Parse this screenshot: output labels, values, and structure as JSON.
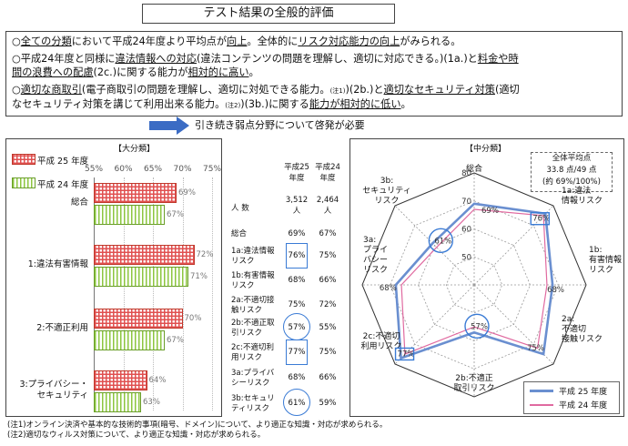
{
  "title": "テスト結果の全般的評価",
  "summary": {
    "line1": [
      "○",
      "全ての分類",
      "において平成24年度より平均点が",
      "向上",
      "。全体的に",
      "リスク対応能力の向上",
      "がみられる。"
    ],
    "line2a": [
      "○平成24年度と同様に",
      "違法情報への対応",
      "(違法コンテンツの問題を理解し、適切に対応できる。)(1a.)と",
      "料金や時"
    ],
    "line2b": [
      "間の浪費への配慮",
      "(2c.)に関する能力が",
      "相対的に高い",
      "。"
    ],
    "line3a": [
      "○",
      "適切な商取引",
      "(電子商取引の問題を理解し、適切に対処できる能力。",
      "(注1)",
      ")(2b.)と",
      "適切なセキュリティ対策",
      "(適切"
    ],
    "line3b": [
      "なセキュリティ対策を講じて利用出来る能力。",
      "(注2)",
      ")(3b.)に関する",
      "能力が相対的に低い",
      "。"
    ]
  },
  "conclusion": "引き続き弱点分野について啓発が必要",
  "left_panel": {
    "title": "【大分類】",
    "legend_25": "平成 25 年度",
    "legend_24": "平成 24 年度"
  },
  "right_panel": {
    "title": "【中分類】",
    "note_lines": [
      "全体平均点",
      "33.8 点/49 点",
      "(約 69%/100%)"
    ],
    "legend_25": "平成 25 年度",
    "legend_24": "平成 24 年度"
  },
  "table": {
    "header_25": [
      "平成25",
      "年度"
    ],
    "header_24": [
      "平成24",
      "年度"
    ],
    "count_label": "人 数",
    "count_25": [
      "3,512",
      "人"
    ],
    "count_24": [
      "2,464",
      "人"
    ],
    "rows": [
      {
        "label": [
          "総合"
        ],
        "v25": "69%",
        "v24": "67%",
        "mark": "none"
      },
      {
        "label": [
          "1a:違法情報",
          "リスク"
        ],
        "v25": "76%",
        "v24": "75%",
        "mark": "square"
      },
      {
        "label": [
          "1b:有害情報",
          "リスク"
        ],
        "v25": "68%",
        "v24": "66%",
        "mark": "none"
      },
      {
        "label": [
          "2a:不適切接",
          "触リスク"
        ],
        "v25": "75%",
        "v24": "72%",
        "mark": "none"
      },
      {
        "label": [
          "2b:不適正取",
          "引リスク"
        ],
        "v25": "57%",
        "v24": "55%",
        "mark": "circle"
      },
      {
        "label": [
          "2c:不適切利",
          "用リスク"
        ],
        "v25": "77%",
        "v24": "75%",
        "mark": "square"
      },
      {
        "label": [
          "3a:プライバ",
          "シーリスク"
        ],
        "v25": "68%",
        "v24": "66%",
        "mark": "none"
      },
      {
        "label": [
          "3b:セキュリ",
          "ティリスク"
        ],
        "v25": "61%",
        "v24": "59%",
        "mark": "circle"
      }
    ]
  },
  "notes": [
    "(注1)オンライン決済や基本的な技術的事項(暗号、ドメイン)について、より適正な知識・対応が求められる。",
    "(注2)適切なウィルス対策について、より適正な知識・対応が求められる。"
  ],
  "chart_data": [
    {
      "type": "bar",
      "orientation": "horizontal",
      "title": "【大分類】",
      "categories": [
        [
          "総合"
        ],
        [
          "1:違法有害情報"
        ],
        [
          "2:不適正利用"
        ],
        [
          "3:プライバシー・",
          "セキュリティ"
        ]
      ],
      "series": [
        {
          "name": "平成 25 年度",
          "values": [
            69,
            72,
            70,
            64
          ],
          "value_labels": [
            "69%",
            "72%",
            "70%",
            "64%"
          ]
        },
        {
          "name": "平成 24 年度",
          "values": [
            67,
            71,
            67,
            63
          ],
          "value_labels": [
            "67%",
            "71%",
            "67%",
            "63%"
          ]
        }
      ],
      "xlim": [
        55,
        75
      ],
      "xticks": [
        "55%",
        "60%",
        "65%",
        "70%",
        "75%"
      ],
      "legend": "top-left"
    },
    {
      "type": "radar",
      "title": "【中分類】",
      "axes": [
        [
          "総合"
        ],
        [
          "1a:違法",
          "情報リスク"
        ],
        [
          "1b:",
          "有害情報",
          "リスク"
        ],
        [
          "2a:",
          "不適切",
          "接触リスク"
        ],
        [
          "2b:不適正",
          "取引リスク"
        ],
        [
          "2c:不適切",
          "利用リスク"
        ],
        [
          "3a:",
          "プライ",
          "バシー",
          "リスク"
        ],
        [
          "3b:",
          "セキュリティ",
          "リスク"
        ]
      ],
      "rlim": [
        40,
        80
      ],
      "rticks": [
        "40",
        "50",
        "60",
        "70",
        "80"
      ],
      "series": [
        {
          "name": "平成 25 年度",
          "values": [
            69,
            76,
            68,
            75,
            57,
            77,
            68,
            61
          ],
          "value_labels": [
            "69%",
            "76%",
            "68%",
            "75%",
            "57%",
            "77%",
            "68%",
            "61%"
          ],
          "color": "#6a8fd0"
        },
        {
          "name": "平成 24 年度",
          "values": [
            67,
            75,
            66,
            72,
            55,
            75,
            66,
            59
          ],
          "color": "#e06aa0"
        }
      ],
      "highlight_square": [
        "76%",
        "77%"
      ],
      "highlight_circle": [
        "61%",
        "57%"
      ],
      "legend": "bottom-right"
    }
  ]
}
